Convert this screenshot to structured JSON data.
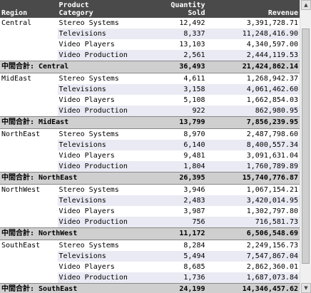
{
  "headers": {
    "region": "Region",
    "category": [
      "Product",
      "Category"
    ],
    "quantity": [
      "Quantity",
      "Sold"
    ],
    "revenue": "Revenue"
  },
  "groups": [
    {
      "region": "Central",
      "rows": [
        {
          "category": "Stereo Systems",
          "quantity": "12,492",
          "revenue": "3,391,728.71"
        },
        {
          "category": "Televisions",
          "quantity": "8,337",
          "revenue": "11,248,416.90"
        },
        {
          "category": "Video Players",
          "quantity": "13,103",
          "revenue": "4,340,597.00"
        },
        {
          "category": "Video Production",
          "quantity": "2,561",
          "revenue": "2,444,119.53"
        }
      ],
      "subtotal": {
        "label": "中間合計: Central",
        "quantity": "36,493",
        "revenue": "21,424,862.14"
      }
    },
    {
      "region": "MidEast",
      "rows": [
        {
          "category": "Stereo Systems",
          "quantity": "4,611",
          "revenue": "1,268,942.37"
        },
        {
          "category": "Televisions",
          "quantity": "3,158",
          "revenue": "4,061,462.60"
        },
        {
          "category": "Video Players",
          "quantity": "5,108",
          "revenue": "1,662,854.03"
        },
        {
          "category": "Video Production",
          "quantity": "922",
          "revenue": "862,980.95"
        }
      ],
      "subtotal": {
        "label": "中間合計: MidEast",
        "quantity": "13,799",
        "revenue": "7,856,239.95"
      }
    },
    {
      "region": "NorthEast",
      "rows": [
        {
          "category": "Stereo Systems",
          "quantity": "8,970",
          "revenue": "2,487,798.60"
        },
        {
          "category": "Televisions",
          "quantity": "6,140",
          "revenue": "8,400,557.34"
        },
        {
          "category": "Video Players",
          "quantity": "9,481",
          "revenue": "3,091,631.04"
        },
        {
          "category": "Video Production",
          "quantity": "1,804",
          "revenue": "1,760,789.89"
        }
      ],
      "subtotal": {
        "label": "中間合計: NorthEast",
        "quantity": "26,395",
        "revenue": "15,740,776.87"
      }
    },
    {
      "region": "NorthWest",
      "rows": [
        {
          "category": "Stereo Systems",
          "quantity": "3,946",
          "revenue": "1,067,154.21"
        },
        {
          "category": "Televisions",
          "quantity": "2,483",
          "revenue": "3,420,014.95"
        },
        {
          "category": "Video Players",
          "quantity": "3,987",
          "revenue": "1,302,797.80"
        },
        {
          "category": "Video Production",
          "quantity": "756",
          "revenue": "716,581.73"
        }
      ],
      "subtotal": {
        "label": "中間合計: NorthWest",
        "quantity": "11,172",
        "revenue": "6,506,548.69"
      }
    },
    {
      "region": "SouthEast",
      "rows": [
        {
          "category": "Stereo Systems",
          "quantity": "8,284",
          "revenue": "2,249,156.73"
        },
        {
          "category": "Televisions",
          "quantity": "5,494",
          "revenue": "7,547,867.04"
        },
        {
          "category": "Video Players",
          "quantity": "8,685",
          "revenue": "2,862,360.01"
        },
        {
          "category": "Video Production",
          "quantity": "1,736",
          "revenue": "1,687,073.84"
        }
      ],
      "subtotal": {
        "label": "中間合計: SouthEast",
        "quantity": "24,199",
        "revenue": "14,346,457.62"
      }
    }
  ],
  "colors": {
    "header_bg": "#4a4a4a",
    "subtotal_bg": "#cfcfcf",
    "alt_row_bg": "#eaeaf4"
  },
  "icons": {
    "scroll_up": "up-arrow-icon",
    "scroll_down": "down-arrow-icon"
  }
}
